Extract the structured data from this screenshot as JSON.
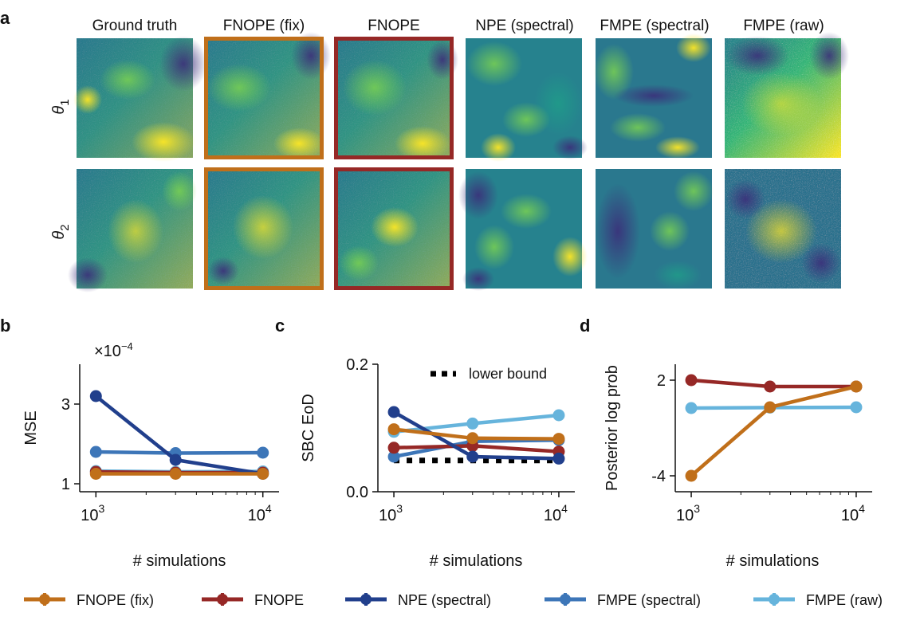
{
  "colors": {
    "fnope_fix": "#c06f1a",
    "fnope": "#962826",
    "npe_spectral": "#213f8c",
    "fmpe_spectral": "#3d76b8",
    "fmpe_raw": "#66b4dc",
    "lower_bound": "#000000"
  },
  "panel_a": {
    "letter": "a",
    "columns": [
      "Ground truth",
      "FNOPE (fix)",
      "FNOPE",
      "NPE (spectral)",
      "FMPE (spectral)",
      "FMPE (raw)"
    ],
    "rows": [
      {
        "base": "θ",
        "sub": "1"
      },
      {
        "base": "θ",
        "sub": "2"
      }
    ]
  },
  "chart_data": [
    {
      "panel": "b",
      "type": "line",
      "ylabel": "MSE",
      "xlabel": "# simulations",
      "xscale": "log",
      "xlim": [
        800,
        12500
      ],
      "ylim": [
        0.8,
        4.0
      ],
      "y_multiplier": "×10",
      "y_multiplier_exp": "−4",
      "yticks": [
        {
          "v": 1,
          "label": "1"
        },
        {
          "v": 3,
          "label": "3"
        }
      ],
      "xticks": [
        {
          "v": 1000,
          "base": "10",
          "exp": "3"
        },
        {
          "v": 10000,
          "base": "10",
          "exp": "4"
        }
      ],
      "x": [
        1000,
        3000,
        10000
      ],
      "series": [
        {
          "name": "FMPE (raw)",
          "key": "fmpe_raw",
          "values": [
            1.32,
            1.3,
            1.31
          ]
        },
        {
          "name": "FMPE (spectral)",
          "key": "fmpe_spectral",
          "values": [
            1.8,
            1.77,
            1.78
          ]
        },
        {
          "name": "FNOPE",
          "key": "fnope",
          "values": [
            1.3,
            1.28,
            1.28
          ]
        },
        {
          "name": "NPE (spectral)",
          "key": "npe_spectral",
          "values": [
            3.2,
            1.6,
            1.25
          ]
        },
        {
          "name": "FNOPE (fix)",
          "key": "fnope_fix",
          "values": [
            1.25,
            1.25,
            1.25
          ]
        }
      ]
    },
    {
      "panel": "c",
      "type": "line",
      "ylabel": "SBC EoD",
      "xlabel": "# simulations",
      "xscale": "log",
      "xlim": [
        800,
        12500
      ],
      "ylim": [
        0.0,
        0.2
      ],
      "yticks": [
        {
          "v": 0.0,
          "label": "0.0"
        },
        {
          "v": 0.2,
          "label": "0.2"
        }
      ],
      "xticks": [
        {
          "v": 1000,
          "base": "10",
          "exp": "3"
        },
        {
          "v": 10000,
          "base": "10",
          "exp": "4"
        }
      ],
      "x": [
        1000,
        3000,
        10000
      ],
      "lower_bound": {
        "label": "lower bound",
        "value": 0.049
      },
      "series": [
        {
          "name": "FMPE (spectral)",
          "key": "fmpe_spectral",
          "values": [
            0.055,
            0.079,
            0.081
          ]
        },
        {
          "name": "FMPE (raw)",
          "key": "fmpe_raw",
          "values": [
            0.094,
            0.107,
            0.12
          ]
        },
        {
          "name": "FNOPE",
          "key": "fnope",
          "values": [
            0.069,
            0.072,
            0.063
          ]
        },
        {
          "name": "NPE (spectral)",
          "key": "npe_spectral",
          "values": [
            0.125,
            0.055,
            0.052
          ]
        },
        {
          "name": "FNOPE (fix)",
          "key": "fnope_fix",
          "values": [
            0.098,
            0.084,
            0.083
          ]
        }
      ]
    },
    {
      "panel": "d",
      "type": "line",
      "ylabel": "Posterior log prob",
      "xlabel": "# simulations",
      "xscale": "log",
      "xlim": [
        800,
        12500
      ],
      "ylim": [
        -5.0,
        3.0
      ],
      "yticks": [
        {
          "v": 2,
          "label": "2"
        },
        {
          "v": -4,
          "label": "-4"
        }
      ],
      "xticks": [
        {
          "v": 1000,
          "base": "10",
          "exp": "3"
        },
        {
          "v": 10000,
          "base": "10",
          "exp": "4"
        }
      ],
      "x": [
        1000,
        3000,
        10000
      ],
      "series": [
        {
          "name": "FNOPE",
          "key": "fnope",
          "values": [
            2.0,
            1.6,
            1.6
          ]
        },
        {
          "name": "FMPE (raw)",
          "key": "fmpe_raw",
          "values": [
            0.25,
            0.28,
            0.3
          ]
        },
        {
          "name": "FNOPE (fix)",
          "key": "fnope_fix",
          "values": [
            -4.0,
            0.3,
            1.6
          ]
        }
      ]
    }
  ],
  "legend": [
    {
      "name": "FNOPE (fix)",
      "key": "fnope_fix"
    },
    {
      "name": "FNOPE",
      "key": "fnope"
    },
    {
      "name": "NPE (spectral)",
      "key": "npe_spectral"
    },
    {
      "name": "FMPE (spectral)",
      "key": "fmpe_spectral"
    },
    {
      "name": "FMPE (raw)",
      "key": "fmpe_raw"
    }
  ]
}
